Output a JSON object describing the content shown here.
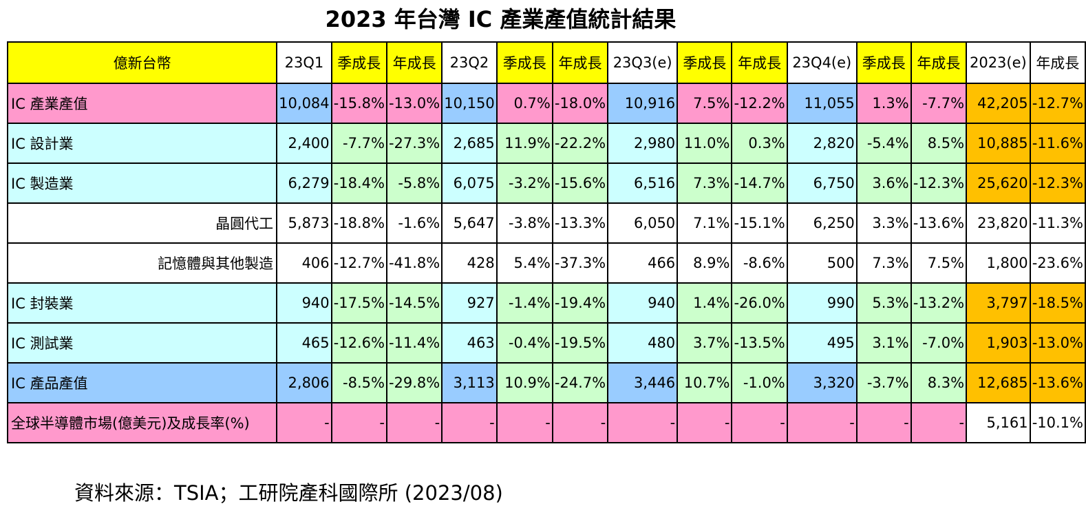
{
  "title": "2023 年台灣 IC 產業產值統計結果",
  "source": "資料來源：TSIA；工研院產科國際所  (2023/08)",
  "colors": {
    "yellow": "#FFFF00",
    "pink": "#FF99CC",
    "blue": "#99CCFF",
    "cyan": "#CCFFFF",
    "green": "#CCFFCC",
    "orange": "#FFC000",
    "white": "#FFFFFF"
  },
  "chart_data": {
    "type": "table",
    "title": "2023 年台灣 IC 產業產值統計結果",
    "columns": [
      "億新台幣",
      "23Q1",
      "季成長",
      "年成長",
      "23Q2",
      "季成長",
      "年成長",
      "23Q3(e)",
      "季成長",
      "年成長",
      "23Q4(e)",
      "季成長",
      "年成長",
      "2023(e)",
      "年成長"
    ],
    "rows": [
      {
        "label": "IC 產業產值",
        "values": [
          "10,084",
          "-15.8%",
          "-13.0%",
          "10,150",
          "0.7%",
          "-18.0%",
          "10,916",
          "7.5%",
          "-12.2%",
          "11,055",
          "1.3%",
          "-7.7%",
          "42,205",
          "-12.7%"
        ]
      },
      {
        "label": "IC 設計業",
        "values": [
          "2,400",
          "-7.7%",
          "-27.3%",
          "2,685",
          "11.9%",
          "-22.2%",
          "2,980",
          "11.0%",
          "0.3%",
          "2,820",
          "-5.4%",
          "8.5%",
          "10,885",
          "-11.6%"
        ]
      },
      {
        "label": "IC 製造業",
        "values": [
          "6,279",
          "-18.4%",
          "-5.8%",
          "6,075",
          "-3.2%",
          "-15.6%",
          "6,516",
          "7.3%",
          "-14.7%",
          "6,750",
          "3.6%",
          "-12.3%",
          "25,620",
          "-12.3%"
        ]
      },
      {
        "label": "晶圓代工",
        "values": [
          "5,873",
          "-18.8%",
          "-1.6%",
          "5,647",
          "-3.8%",
          "-13.3%",
          "6,050",
          "7.1%",
          "-15.1%",
          "6,250",
          "3.3%",
          "-13.6%",
          "23,820",
          "-11.3%"
        ]
      },
      {
        "label": "記憶體與其他製造",
        "values": [
          "406",
          "-12.7%",
          "-41.8%",
          "428",
          "5.4%",
          "-37.3%",
          "466",
          "8.9%",
          "-8.6%",
          "500",
          "7.3%",
          "7.5%",
          "1,800",
          "-23.6%"
        ]
      },
      {
        "label": "IC 封裝業",
        "values": [
          "940",
          "-17.5%",
          "-14.5%",
          "927",
          "-1.4%",
          "-19.4%",
          "940",
          "1.4%",
          "-26.0%",
          "990",
          "5.3%",
          "-13.2%",
          "3,797",
          "-18.5%"
        ]
      },
      {
        "label": "IC 測試業",
        "values": [
          "465",
          "-12.6%",
          "-11.4%",
          "463",
          "-0.4%",
          "-19.5%",
          "480",
          "3.7%",
          "-13.5%",
          "495",
          "3.1%",
          "-7.0%",
          "1,903",
          "-13.0%"
        ]
      },
      {
        "label": "IC 產品產值",
        "values": [
          "2,806",
          "-8.5%",
          "-29.8%",
          "3,113",
          "10.9%",
          "-24.7%",
          "3,446",
          "10.7%",
          "-1.0%",
          "3,320",
          "-3.7%",
          "8.3%",
          "12,685",
          "-13.6%"
        ]
      },
      {
        "label": "全球半導體市場(億美元)及成長率(%)",
        "values": [
          "-",
          "-",
          "-",
          "-",
          "-",
          "-",
          "-",
          "-",
          "-",
          "-",
          "-",
          "-",
          "5,161",
          "-10.1%"
        ]
      }
    ]
  }
}
